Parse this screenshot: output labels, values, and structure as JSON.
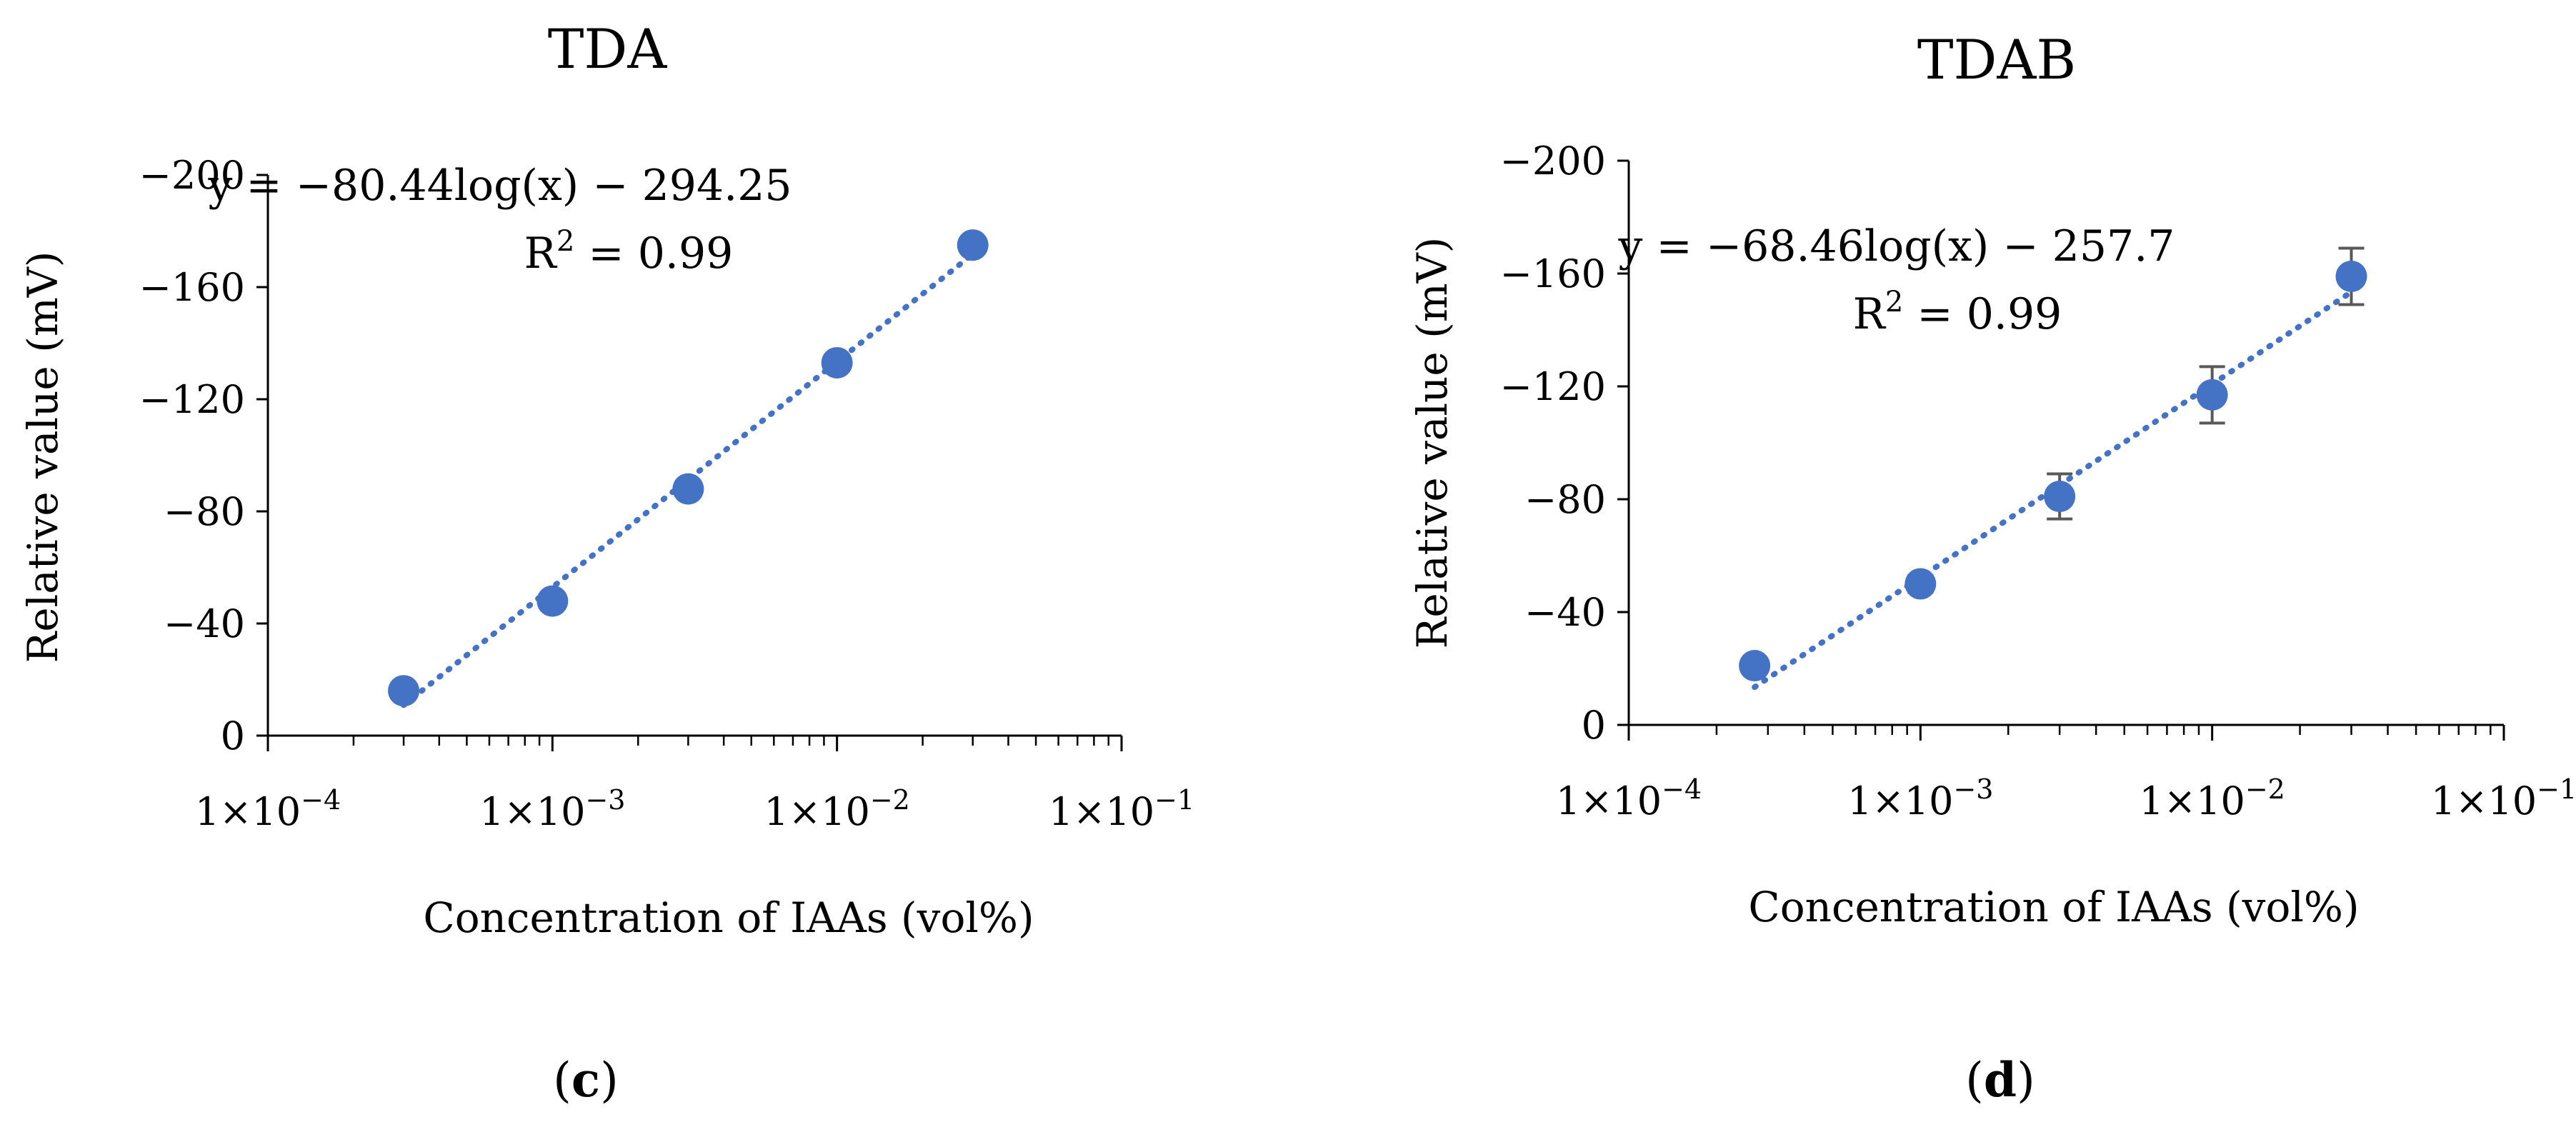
{
  "chart_data": [
    {
      "type": "scatter",
      "title": "TDA",
      "panel_label": "c",
      "xlabel": "Concentration of IAAs (vol%)",
      "ylabel": "Relative value (mV)",
      "x_scale": "log",
      "xlim": [
        0.0001,
        0.1
      ],
      "ylim": [
        0,
        -200
      ],
      "y_ticks": [
        0,
        -40,
        -80,
        -120,
        -160,
        -200
      ],
      "y_tick_labels": [
        "0",
        "−40",
        "−80",
        "−120",
        "−160",
        "−200"
      ],
      "x_ticks": [
        0.0001,
        0.001,
        0.01,
        0.1
      ],
      "x_tick_labels": [
        {
          "mantissa": "1×10",
          "exp": "−4"
        },
        {
          "mantissa": "1×10",
          "exp": "−3"
        },
        {
          "mantissa": "1×10",
          "exp": "−2"
        },
        {
          "mantissa": "1×10",
          "exp": "−1"
        }
      ],
      "series": [
        {
          "name": "TDA",
          "x": [
            0.0003,
            0.001,
            0.003,
            0.01,
            0.03
          ],
          "y": [
            -16,
            -48,
            -88,
            -133,
            -175
          ],
          "err": [
            0,
            0,
            0,
            0,
            0
          ]
        }
      ],
      "trendline": {
        "slope": -80.44,
        "intercept": -294.25,
        "x_range": [
          0.0003,
          0.03
        ]
      },
      "equation": "y = −80.44log(x) − 294.25",
      "r2_label": "R",
      "r2_sup": "2",
      "r2_value": " = 0.99",
      "marker_color": "#4472C4"
    },
    {
      "type": "scatter",
      "title": "TDAB",
      "panel_label": "d",
      "xlabel": "Concentration of IAAs (vol%)",
      "ylabel": "Relative value (mV)",
      "x_scale": "log",
      "xlim": [
        0.0001,
        0.1
      ],
      "ylim": [
        0,
        -200
      ],
      "y_ticks": [
        0,
        -40,
        -80,
        -120,
        -160,
        -200
      ],
      "y_tick_labels": [
        "0",
        "−40",
        "−80",
        "−120",
        "−160",
        "−200"
      ],
      "x_ticks": [
        0.0001,
        0.001,
        0.01,
        0.1
      ],
      "x_tick_labels": [
        {
          "mantissa": "1×10",
          "exp": "−4"
        },
        {
          "mantissa": "1×10",
          "exp": "−3"
        },
        {
          "mantissa": "1×10",
          "exp": "−2"
        },
        {
          "mantissa": "1×10",
          "exp": "−1"
        }
      ],
      "series": [
        {
          "name": "TDAB",
          "x": [
            0.00027,
            0.001,
            0.003,
            0.01,
            0.03
          ],
          "y": [
            -21,
            -50,
            -81,
            -117,
            -159
          ],
          "err": [
            0,
            3,
            8,
            10,
            10
          ]
        }
      ],
      "trendline": {
        "slope": -68.46,
        "intercept": -257.7,
        "x_range": [
          0.00027,
          0.03
        ]
      },
      "equation": "y = −68.46log(x) − 257.7",
      "r2_label": "R",
      "r2_sup": "2",
      "r2_value": " = 0.99",
      "marker_color": "#4472C4"
    }
  ]
}
